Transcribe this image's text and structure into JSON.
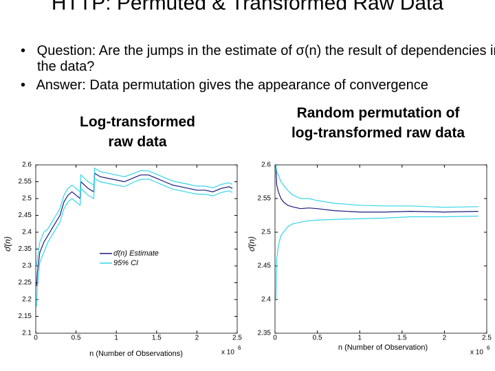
{
  "title": "HTTP: Permuted & Transformed Raw Data",
  "bullets": [
    "Question: Are the jumps in the estimate of σ(n) the result of dependencies in the data?",
    "Answer: Data permutation gives the appearance of convergence"
  ],
  "chart_data": [
    {
      "type": "line",
      "title": "Log-transformed raw data",
      "xlabel": "n (Number of Observations)",
      "ylabel": "σ̂(n)",
      "x_multiplier": "x 10",
      "x_exponent": "6",
      "legend": true,
      "x": [
        0.01,
        0.02,
        0.05,
        0.1,
        0.15,
        0.2,
        0.25,
        0.3,
        0.35,
        0.4,
        0.45,
        0.5,
        0.55,
        0.56,
        0.65,
        0.72,
        0.73,
        0.8,
        0.9,
        1.0,
        1.1,
        1.2,
        1.3,
        1.4,
        1.5,
        1.6,
        1.7,
        1.8,
        1.9,
        2.0,
        2.1,
        2.2,
        2.3,
        2.4,
        2.44
      ],
      "series": [
        {
          "name": "σ̂(n) Estimate",
          "color": "#1a1a7a",
          "values": [
            2.24,
            2.28,
            2.34,
            2.37,
            2.39,
            2.41,
            2.43,
            2.45,
            2.49,
            2.51,
            2.52,
            2.51,
            2.5,
            2.55,
            2.53,
            2.52,
            2.575,
            2.565,
            2.56,
            2.555,
            2.55,
            2.56,
            2.57,
            2.57,
            2.56,
            2.55,
            2.54,
            2.535,
            2.53,
            2.525,
            2.525,
            2.52,
            2.53,
            2.535,
            2.53
          ]
        },
        {
          "name": "95% CI",
          "color": "#33d6e8",
          "values": [
            2.3,
            2.32,
            2.37,
            2.4,
            2.41,
            2.43,
            2.45,
            2.47,
            2.51,
            2.53,
            2.54,
            2.53,
            2.52,
            2.57,
            2.55,
            2.54,
            2.59,
            2.58,
            2.575,
            2.57,
            2.565,
            2.573,
            2.583,
            2.582,
            2.572,
            2.562,
            2.552,
            2.547,
            2.542,
            2.537,
            2.537,
            2.532,
            2.542,
            2.547,
            2.542
          ]
        },
        {
          "color": "#33d6e8",
          "values": [
            2.18,
            2.24,
            2.31,
            2.34,
            2.37,
            2.39,
            2.41,
            2.43,
            2.47,
            2.49,
            2.5,
            2.49,
            2.48,
            2.53,
            2.51,
            2.5,
            2.56,
            2.55,
            2.545,
            2.54,
            2.535,
            2.547,
            2.557,
            2.558,
            2.548,
            2.538,
            2.528,
            2.523,
            2.518,
            2.513,
            2.513,
            2.508,
            2.518,
            2.523,
            2.518
          ]
        }
      ],
      "xlim": [
        0,
        2.5
      ],
      "xticks": [
        0,
        0.5,
        1,
        1.5,
        2,
        2.5
      ],
      "ylim": [
        2.1,
        2.6
      ],
      "yticks": [
        2.1,
        2.15,
        2.2,
        2.25,
        2.3,
        2.35,
        2.4,
        2.45,
        2.5,
        2.55,
        2.6
      ]
    },
    {
      "type": "line",
      "title": "Random permutation of log-transformed raw data",
      "xlabel": "n (Number of Observation)",
      "ylabel": "σ̂(n)",
      "x_multiplier": "x 10",
      "x_exponent": "6",
      "x": [
        0.01,
        0.02,
        0.04,
        0.07,
        0.1,
        0.15,
        0.2,
        0.3,
        0.4,
        0.5,
        0.7,
        1.0,
        1.3,
        1.6,
        2.0,
        2.4
      ],
      "series": [
        {
          "color": "#1a1a7a",
          "values": [
            2.6,
            2.57,
            2.56,
            2.55,
            2.545,
            2.54,
            2.538,
            2.535,
            2.536,
            2.535,
            2.532,
            2.53,
            2.53,
            2.531,
            2.53,
            2.531
          ]
        },
        {
          "color": "#33d6e8",
          "values": [
            2.6,
            2.59,
            2.585,
            2.575,
            2.57,
            2.562,
            2.556,
            2.55,
            2.55,
            2.547,
            2.543,
            2.54,
            2.539,
            2.539,
            2.537,
            2.538
          ]
        },
        {
          "color": "#33d6e8",
          "values": [
            2.4,
            2.46,
            2.48,
            2.495,
            2.5,
            2.508,
            2.512,
            2.515,
            2.517,
            2.518,
            2.519,
            2.52,
            2.521,
            2.523,
            2.523,
            2.524
          ]
        }
      ],
      "xlim": [
        0,
        2.5
      ],
      "xticks": [
        0,
        0.5,
        1,
        1.5,
        2,
        2.5
      ],
      "ylim": [
        2.35,
        2.6
      ],
      "yticks": [
        2.35,
        2.4,
        2.45,
        2.5,
        2.55,
        2.6
      ]
    }
  ]
}
